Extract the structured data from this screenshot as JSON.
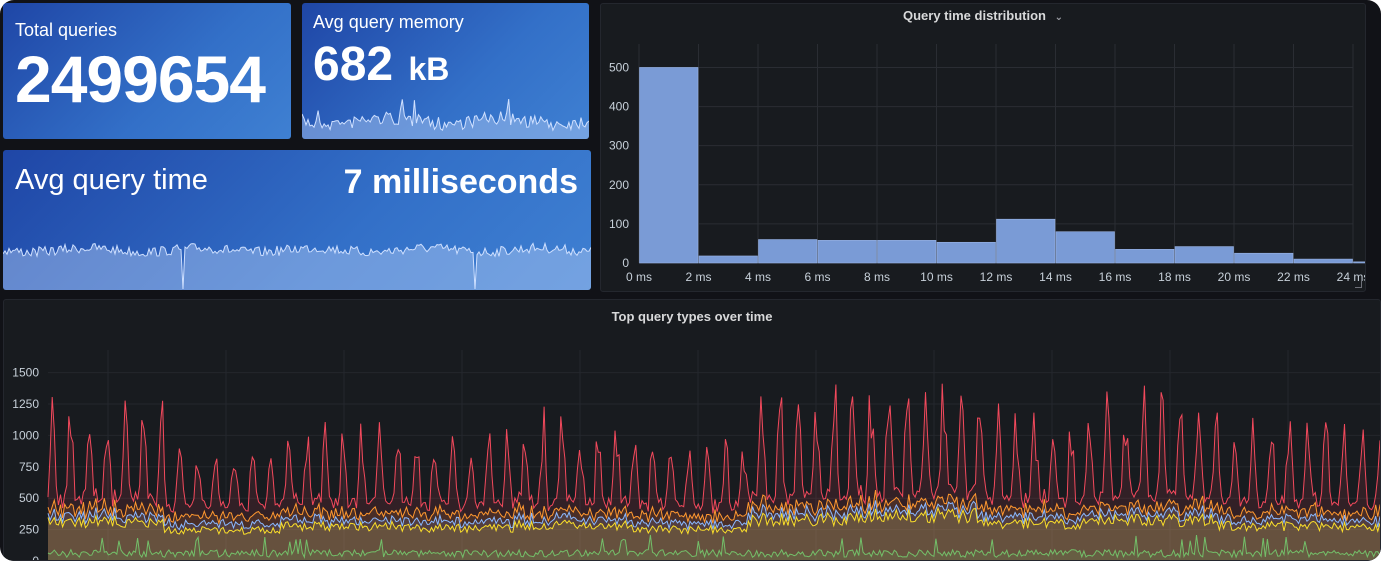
{
  "stats": {
    "total_queries": {
      "title": "Total queries",
      "value": "2499654"
    },
    "avg_query_memory": {
      "title": "Avg query memory",
      "value": "682",
      "unit": "kB"
    },
    "avg_query_time": {
      "title": "Avg query time",
      "value": "7 milliseconds"
    }
  },
  "histogram": {
    "title": "Query time distribution",
    "dropdown_icon": "chevron-down-icon",
    "chart_data": {
      "type": "bar",
      "title": "Query time distribution",
      "x_ticks": [
        "0 ms",
        "2 ms",
        "4 ms",
        "6 ms",
        "8 ms",
        "10 ms",
        "12 ms",
        "14 ms",
        "16 ms",
        "18 ms",
        "20 ms",
        "22 ms",
        "24 ms"
      ],
      "bin_width_ms": 2,
      "values": [
        500,
        18,
        60,
        58,
        58,
        53,
        112,
        80,
        35,
        42,
        25,
        10,
        3
      ],
      "y_ticks": [
        0,
        100,
        200,
        300,
        400,
        500
      ],
      "ylim": [
        0,
        560
      ],
      "xlim": [
        0,
        24
      ],
      "bar_color": "#7a9bd6",
      "grid": true
    }
  },
  "timeseries": {
    "title": "Top query types over time",
    "chart_data": {
      "type": "line",
      "title": "Top query types over time",
      "y_ticks": [
        0,
        250,
        500,
        750,
        1000,
        1250,
        1500
      ],
      "ylim": [
        0,
        1600
      ],
      "grid": true,
      "series_colors": [
        "#f2495c",
        "#ff9830",
        "#8ab8ff",
        "#fade2a",
        "#73bf69"
      ]
    }
  }
}
